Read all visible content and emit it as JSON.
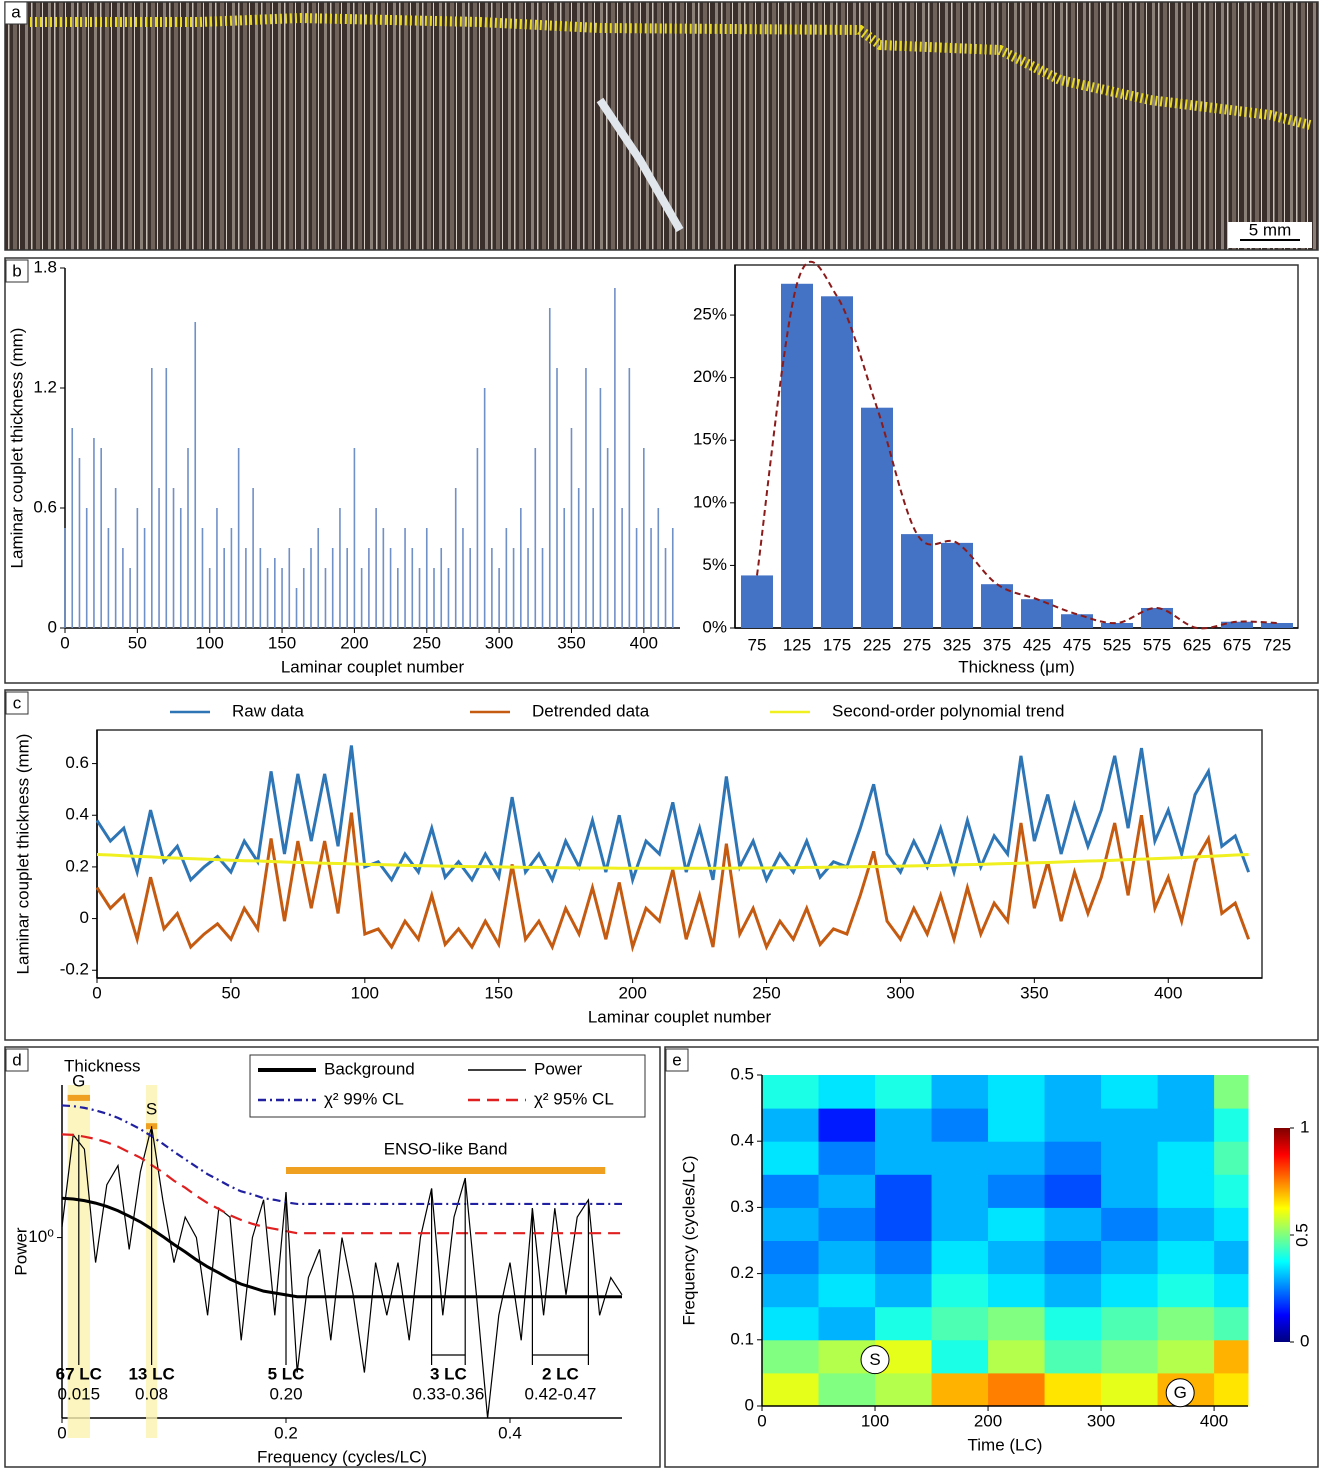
{
  "photo": {
    "label": "a",
    "scale_bar": "5 mm"
  },
  "chart_data": [
    {
      "type": "bar",
      "panel": "b",
      "xlabel": "Laminar couplet number",
      "ylabel": "Laminar couplet thickness (mm)",
      "color": "#7090c8",
      "x": [
        0,
        5,
        10,
        15,
        20,
        25,
        30,
        35,
        40,
        45,
        50,
        55,
        60,
        65,
        70,
        75,
        80,
        85,
        90,
        95,
        100,
        105,
        110,
        115,
        120,
        125,
        130,
        135,
        140,
        145,
        150,
        155,
        160,
        165,
        170,
        175,
        180,
        185,
        190,
        195,
        200,
        205,
        210,
        215,
        220,
        225,
        230,
        235,
        240,
        245,
        250,
        255,
        260,
        265,
        270,
        275,
        280,
        285,
        290,
        295,
        300,
        305,
        310,
        315,
        320,
        325,
        330,
        335,
        340,
        345,
        350,
        355,
        360,
        365,
        370,
        375,
        380,
        385,
        390,
        395,
        400,
        405,
        410,
        415,
        420
      ],
      "values": [
        0.5,
        1.0,
        0.85,
        0.6,
        0.95,
        0.9,
        0.5,
        0.7,
        0.4,
        0.3,
        0.6,
        0.5,
        1.3,
        0.7,
        1.3,
        0.7,
        0.6,
        0.9,
        1.53,
        0.5,
        0.3,
        0.6,
        0.4,
        0.5,
        0.9,
        0.4,
        0.7,
        0.4,
        0.3,
        0.35,
        0.3,
        0.4,
        0.2,
        0.3,
        0.4,
        0.5,
        0.3,
        0.4,
        0.6,
        0.4,
        0.9,
        0.3,
        0.4,
        0.6,
        0.5,
        0.4,
        0.3,
        0.5,
        0.4,
        0.3,
        0.5,
        0.3,
        0.4,
        0.3,
        0.7,
        0.5,
        0.4,
        0.9,
        1.2,
        0.4,
        0.3,
        0.5,
        0.4,
        0.6,
        0.4,
        0.9,
        0.4,
        1.6,
        1.3,
        0.6,
        1.0,
        0.7,
        1.3,
        0.6,
        1.2,
        0.9,
        1.7,
        0.6,
        1.3,
        0.5,
        0.9,
        0.5,
        0.6,
        0.4,
        0.5
      ],
      "xlim": [
        0,
        425
      ],
      "ylim": [
        0,
        1.8
      ],
      "xticks": [
        0,
        50,
        100,
        150,
        200,
        250,
        300,
        350,
        400
      ],
      "yticks": [
        0,
        0.6,
        1.2,
        1.8
      ]
    },
    {
      "type": "column",
      "xlabel": "Thickness (μm)",
      "color": "#4472c4",
      "curve_color": "#8b1a1a",
      "categories": [
        "75",
        "125",
        "175",
        "225",
        "275",
        "325",
        "375",
        "425",
        "475",
        "525",
        "575",
        "625",
        "675",
        "725"
      ],
      "values": [
        4.2,
        27.5,
        26.5,
        17.6,
        7.5,
        6.8,
        3.5,
        2.3,
        1.1,
        0.4,
        1.6,
        0,
        0.5,
        0.4
      ],
      "ylim": [
        0,
        29
      ],
      "yticks": [
        {
          "value": 0,
          "label": "0%"
        },
        {
          "value": 5,
          "label": "5%"
        },
        {
          "value": 10,
          "label": "10%"
        },
        {
          "value": 15,
          "label": "15%"
        },
        {
          "value": 20,
          "label": "20%"
        },
        {
          "value": 25,
          "label": "25%"
        }
      ]
    },
    {
      "type": "line",
      "panel": "c",
      "xlabel": "Laminar couplet number",
      "ylabel": "Laminar couplet thickness (mm)",
      "legend": "top",
      "x": [
        0,
        5,
        10,
        15,
        20,
        25,
        30,
        35,
        40,
        45,
        50,
        55,
        60,
        65,
        70,
        75,
        80,
        85,
        90,
        95,
        100,
        105,
        110,
        115,
        120,
        125,
        130,
        135,
        140,
        145,
        150,
        155,
        160,
        165,
        170,
        175,
        180,
        185,
        190,
        195,
        200,
        205,
        210,
        215,
        220,
        225,
        230,
        235,
        240,
        245,
        250,
        255,
        260,
        265,
        270,
        275,
        280,
        285,
        290,
        295,
        300,
        305,
        310,
        315,
        320,
        325,
        330,
        335,
        340,
        345,
        350,
        355,
        360,
        365,
        370,
        375,
        380,
        385,
        390,
        395,
        400,
        405,
        410,
        415,
        420,
        425,
        430
      ],
      "series": [
        {
          "name": "Raw data",
          "color": "#2e75b6",
          "values": [
            0.38,
            0.3,
            0.35,
            0.18,
            0.42,
            0.22,
            0.28,
            0.15,
            0.2,
            0.24,
            0.18,
            0.3,
            0.22,
            0.57,
            0.25,
            0.56,
            0.3,
            0.56,
            0.28,
            0.67,
            0.2,
            0.22,
            0.15,
            0.25,
            0.18,
            0.35,
            0.16,
            0.22,
            0.15,
            0.25,
            0.16,
            0.47,
            0.18,
            0.25,
            0.15,
            0.3,
            0.2,
            0.38,
            0.18,
            0.4,
            0.15,
            0.3,
            0.25,
            0.45,
            0.18,
            0.35,
            0.15,
            0.55,
            0.2,
            0.3,
            0.15,
            0.25,
            0.18,
            0.3,
            0.16,
            0.22,
            0.2,
            0.35,
            0.52,
            0.25,
            0.18,
            0.3,
            0.2,
            0.35,
            0.18,
            0.38,
            0.2,
            0.32,
            0.25,
            0.63,
            0.3,
            0.48,
            0.25,
            0.44,
            0.28,
            0.42,
            0.63,
            0.35,
            0.66,
            0.3,
            0.42,
            0.25,
            0.48,
            0.57,
            0.28,
            0.32,
            0.18
          ]
        },
        {
          "name": "Detrended data",
          "color": "#c55a11",
          "values": [
            0.12,
            0.04,
            0.09,
            -0.08,
            0.16,
            -0.04,
            0.02,
            -0.11,
            -0.06,
            -0.02,
            -0.08,
            0.04,
            -0.04,
            0.31,
            -0.01,
            0.3,
            0.04,
            0.3,
            0.02,
            0.41,
            -0.06,
            -0.04,
            -0.11,
            -0.01,
            -0.08,
            0.09,
            -0.1,
            -0.04,
            -0.11,
            -0.01,
            -0.1,
            0.21,
            -0.08,
            -0.01,
            -0.11,
            0.04,
            -0.06,
            0.12,
            -0.08,
            0.14,
            -0.11,
            0.04,
            -0.01,
            0.19,
            -0.08,
            0.09,
            -0.11,
            0.29,
            -0.06,
            0.04,
            -0.11,
            -0.01,
            -0.08,
            0.04,
            -0.1,
            -0.04,
            -0.06,
            0.09,
            0.26,
            -0.01,
            -0.08,
            0.04,
            -0.06,
            0.09,
            -0.08,
            0.12,
            -0.06,
            0.06,
            -0.01,
            0.37,
            0.04,
            0.22,
            -0.01,
            0.18,
            0.02,
            0.16,
            0.37,
            0.09,
            0.4,
            0.04,
            0.16,
            -0.01,
            0.22,
            0.31,
            0.02,
            0.06,
            -0.08
          ]
        },
        {
          "name": "Second-order polynomial trend",
          "color": "#f0f020",
          "values": [
            0.248,
            0.246,
            0.243,
            0.241,
            0.239,
            0.236,
            0.234,
            0.232,
            0.23,
            0.228,
            0.226,
            0.224,
            0.223,
            0.221,
            0.219,
            0.217,
            0.216,
            0.214,
            0.213,
            0.212,
            0.21,
            0.209,
            0.208,
            0.206,
            0.205,
            0.204,
            0.203,
            0.202,
            0.201,
            0.201,
            0.2,
            0.199,
            0.198,
            0.198,
            0.197,
            0.197,
            0.196,
            0.196,
            0.196,
            0.195,
            0.195,
            0.195,
            0.195,
            0.195,
            0.195,
            0.195,
            0.195,
            0.195,
            0.196,
            0.196,
            0.196,
            0.197,
            0.197,
            0.198,
            0.198,
            0.199,
            0.2,
            0.201,
            0.201,
            0.202,
            0.203,
            0.204,
            0.205,
            0.206,
            0.208,
            0.209,
            0.21,
            0.212,
            0.213,
            0.214,
            0.216,
            0.217,
            0.219,
            0.221,
            0.223,
            0.224,
            0.226,
            0.228,
            0.23,
            0.232,
            0.234,
            0.236,
            0.239,
            0.241,
            0.243,
            0.246,
            0.248
          ]
        }
      ],
      "xlim": [
        0,
        435
      ],
      "ylim": [
        -0.23,
        0.73
      ],
      "xticks": [
        0,
        50,
        100,
        150,
        200,
        250,
        300,
        350,
        400
      ],
      "yticks": [
        -0.2,
        0,
        0.2,
        0.4,
        0.6
      ]
    },
    {
      "type": "line",
      "panel": "d",
      "title": "Thickness",
      "xlabel": "Frequency (cycles/LC)",
      "ylabel": "Power",
      "legend": "box",
      "log_y": true,
      "x": [
        0,
        0.01,
        0.02,
        0.03,
        0.04,
        0.05,
        0.06,
        0.07,
        0.08,
        0.09,
        0.1,
        0.11,
        0.12,
        0.13,
        0.14,
        0.15,
        0.16,
        0.17,
        0.18,
        0.19,
        0.2,
        0.21,
        0.22,
        0.23,
        0.24,
        0.25,
        0.26,
        0.27,
        0.28,
        0.29,
        0.3,
        0.31,
        0.32,
        0.33,
        0.34,
        0.35,
        0.36,
        0.37,
        0.38,
        0.39,
        0.4,
        0.41,
        0.42,
        0.43,
        0.44,
        0.45,
        0.46,
        0.47,
        0.48,
        0.49,
        0.5
      ],
      "series": [
        {
          "name": "Background",
          "color": "#000000",
          "style": "thick",
          "values": [
            1.42,
            1.41,
            1.39,
            1.36,
            1.32,
            1.27,
            1.21,
            1.15,
            1.08,
            1.01,
            0.94,
            0.88,
            0.82,
            0.77,
            0.73,
            0.69,
            0.66,
            0.64,
            0.62,
            0.61,
            0.6,
            0.59,
            0.59,
            0.59,
            0.59,
            0.59,
            0.59,
            0.59,
            0.59,
            0.59,
            0.59,
            0.59,
            0.59,
            0.59,
            0.59,
            0.59,
            0.59,
            0.59,
            0.59,
            0.59,
            0.59,
            0.59,
            0.59,
            0.59,
            0.59,
            0.59,
            0.59,
            0.59,
            0.59,
            0.59,
            0.59
          ]
        },
        {
          "name": "Power",
          "color": "#000000",
          "style": "thin",
          "values": [
            1.1,
            2.5,
            2.2,
            0.8,
            1.6,
            1.9,
            0.9,
            1.8,
            2.7,
            1.4,
            0.8,
            1.2,
            1.0,
            0.5,
            1.3,
            1.2,
            0.4,
            1.0,
            1.4,
            0.5,
            1.5,
            0.3,
            0.7,
            0.9,
            0.4,
            1.0,
            0.6,
            0.3,
            0.8,
            0.5,
            0.8,
            0.4,
            1.0,
            1.55,
            0.5,
            1.2,
            1.7,
            0.6,
            0.2,
            0.5,
            0.8,
            0.4,
            1.3,
            0.5,
            1.3,
            0.6,
            1.2,
            1.4,
            0.5,
            0.7,
            0.6
          ]
        },
        {
          "name": "χ² 99% CL",
          "color": "#2020a0",
          "style": "dashdot",
          "values": [
            3.25,
            3.23,
            3.18,
            3.11,
            3.02,
            2.91,
            2.77,
            2.63,
            2.47,
            2.31,
            2.15,
            2.01,
            1.88,
            1.76,
            1.67,
            1.58,
            1.51,
            1.47,
            1.42,
            1.4,
            1.37,
            1.35,
            1.35,
            1.35,
            1.35,
            1.35,
            1.35,
            1.35,
            1.35,
            1.35,
            1.35,
            1.35,
            1.35,
            1.35,
            1.35,
            1.35,
            1.35,
            1.35,
            1.35,
            1.35,
            1.35,
            1.35,
            1.35,
            1.35,
            1.35,
            1.35,
            1.35,
            1.35,
            1.35,
            1.35,
            1.35
          ]
        },
        {
          "name": "χ² 95% CL",
          "color": "#e02020",
          "style": "dashed",
          "values": [
            2.51,
            2.5,
            2.46,
            2.41,
            2.34,
            2.25,
            2.14,
            2.04,
            1.91,
            1.79,
            1.66,
            1.56,
            1.45,
            1.36,
            1.29,
            1.22,
            1.17,
            1.13,
            1.1,
            1.08,
            1.06,
            1.04,
            1.04,
            1.04,
            1.04,
            1.04,
            1.04,
            1.04,
            1.04,
            1.04,
            1.04,
            1.04,
            1.04,
            1.04,
            1.04,
            1.04,
            1.04,
            1.04,
            1.04,
            1.04,
            1.04,
            1.04,
            1.04,
            1.04,
            1.04,
            1.04,
            1.04,
            1.04,
            1.04,
            1.04,
            1.04
          ]
        }
      ],
      "highlights": [
        {
          "label": "G",
          "range": [
            0.005,
            0.025
          ]
        },
        {
          "label": "S",
          "range": [
            0.075,
            0.085
          ]
        }
      ],
      "band": {
        "label": "ENSO-like Band",
        "range": [
          0.2,
          0.485
        ]
      },
      "periods": [
        {
          "period": "67 LC",
          "freq": "0.015",
          "x": [
            0.015
          ]
        },
        {
          "period": "13 LC",
          "freq": "0.08",
          "x": [
            0.08
          ]
        },
        {
          "period": "5 LC",
          "freq": "0.20",
          "x": [
            0.2
          ]
        },
        {
          "period": "3 LC",
          "freq": "0.33-0.36",
          "x": [
            0.33,
            0.36
          ]
        },
        {
          "period": "2 LC",
          "freq": "0.42-0.47",
          "x": [
            0.42,
            0.47
          ]
        }
      ],
      "xlim": [
        0,
        0.5
      ],
      "ylim": [
        0.2,
        3.9
      ],
      "xticks": [
        0,
        0.2,
        0.4
      ],
      "yticks": [
        {
          "value": 1,
          "label": "10⁰"
        }
      ]
    },
    {
      "type": "heatmap",
      "panel": "e",
      "xlabel": "Time (LC)",
      "ylabel": "Frequency (cycles/LC)",
      "x_bins": [
        0,
        50,
        100,
        150,
        200,
        250,
        300,
        350,
        400,
        430
      ],
      "y_bins": [
        0,
        0.05,
        0.1,
        0.15,
        0.2,
        0.25,
        0.3,
        0.35,
        0.4,
        0.45,
        0.5
      ],
      "z": [
        [
          0.6,
          0.5,
          0.55,
          0.7,
          0.75,
          0.65,
          0.6,
          0.7,
          0.65
        ],
        [
          0.5,
          0.55,
          0.6,
          0.4,
          0.55,
          0.45,
          0.5,
          0.55,
          0.7
        ],
        [
          0.35,
          0.3,
          0.4,
          0.45,
          0.5,
          0.4,
          0.45,
          0.5,
          0.45
        ],
        [
          0.3,
          0.35,
          0.3,
          0.4,
          0.35,
          0.3,
          0.35,
          0.4,
          0.35
        ],
        [
          0.25,
          0.3,
          0.25,
          0.35,
          0.3,
          0.25,
          0.3,
          0.35,
          0.3
        ],
        [
          0.3,
          0.25,
          0.2,
          0.3,
          0.35,
          0.3,
          0.25,
          0.3,
          0.35
        ],
        [
          0.25,
          0.3,
          0.2,
          0.3,
          0.25,
          0.2,
          0.3,
          0.35,
          0.4
        ],
        [
          0.35,
          0.25,
          0.3,
          0.3,
          0.3,
          0.25,
          0.3,
          0.35,
          0.45
        ],
        [
          0.3,
          0.15,
          0.3,
          0.25,
          0.35,
          0.3,
          0.3,
          0.3,
          0.4
        ],
        [
          0.4,
          0.35,
          0.4,
          0.3,
          0.35,
          0.3,
          0.35,
          0.3,
          0.5
        ]
      ],
      "markers": [
        {
          "label": "S",
          "x": 100,
          "y": 0.07
        },
        {
          "label": "G",
          "x": 370,
          "y": 0.02
        }
      ],
      "xlim": [
        0,
        430
      ],
      "ylim": [
        0,
        0.5
      ],
      "xticks": [
        0,
        100,
        200,
        300,
        400
      ],
      "yticks": [
        0,
        0.1,
        0.2,
        0.3,
        0.4,
        0.5
      ],
      "colorbar_lim": [
        0,
        1
      ],
      "colorbar_ticks": [
        0,
        0.5,
        1
      ]
    }
  ]
}
